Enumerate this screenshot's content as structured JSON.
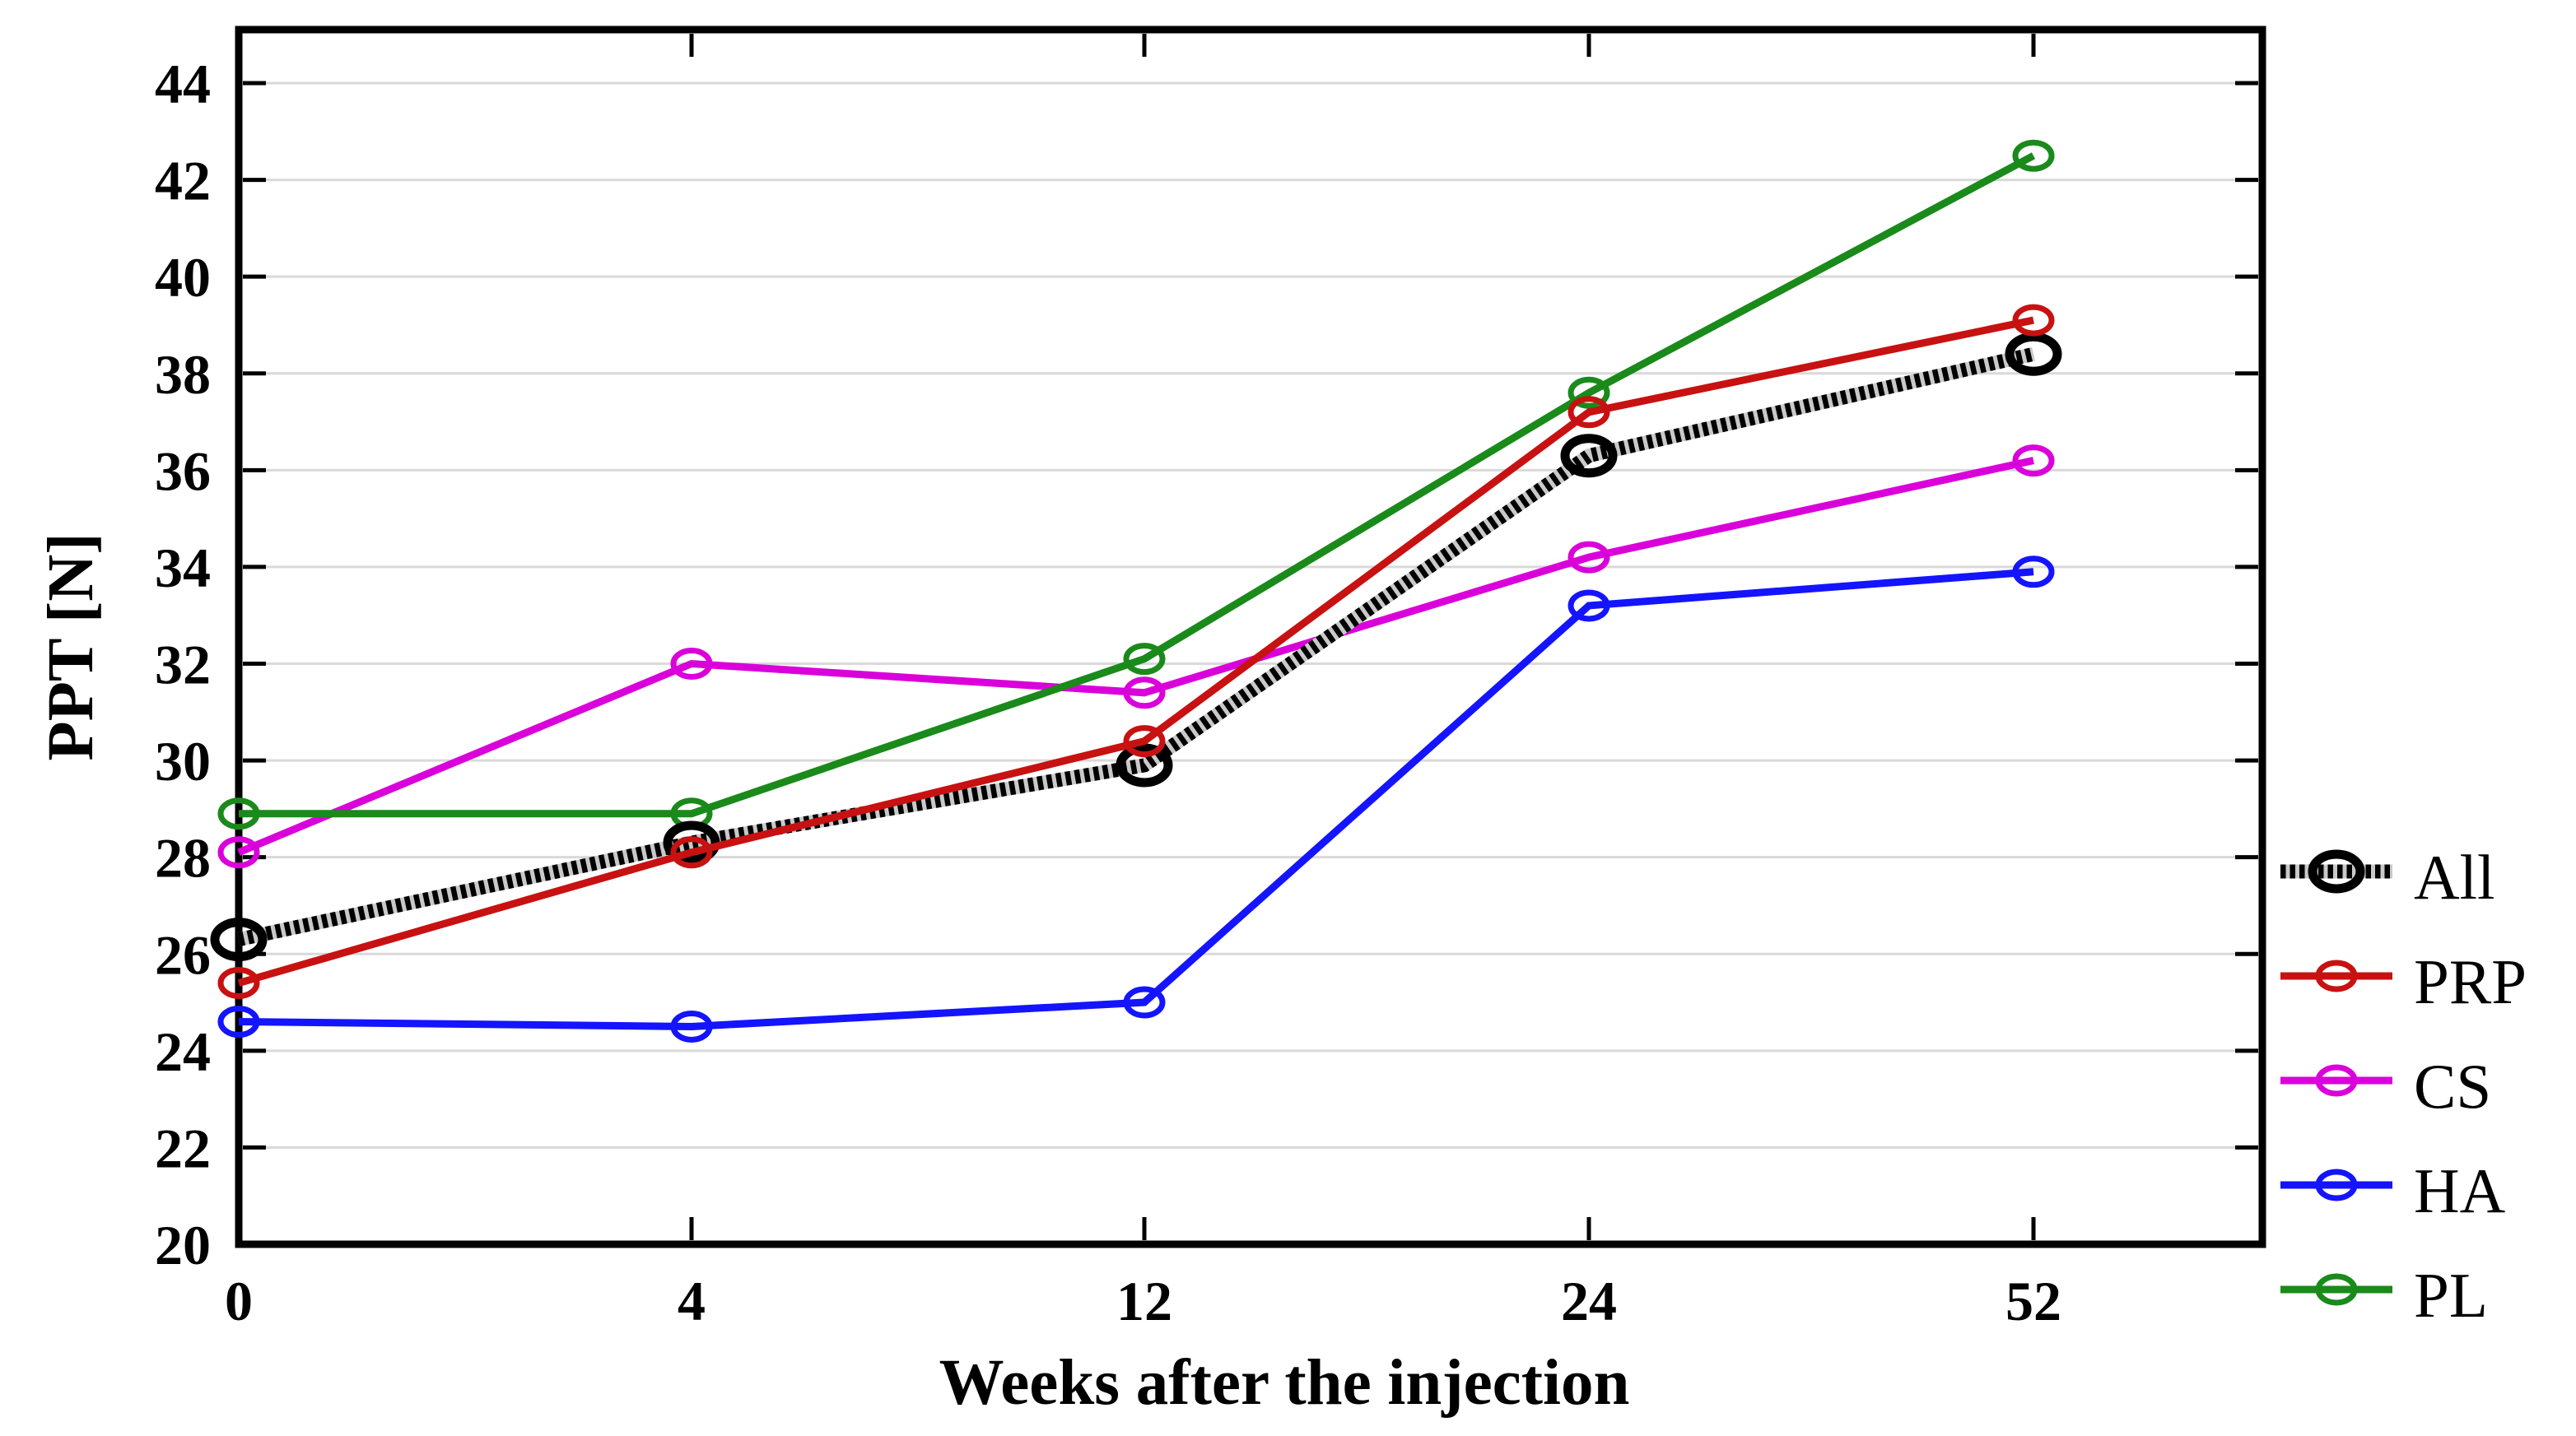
{
  "chart_data": {
    "type": "line",
    "title": "",
    "xlabel": "Weeks after the injection",
    "ylabel": "PPT [N]",
    "categories": [
      "0",
      "4",
      "12",
      "24",
      "52"
    ],
    "series": [
      {
        "name": "All",
        "color": "#000000",
        "line_style": "striped",
        "stripe_gap_color": "#c9c9c9",
        "values": [
          26.3,
          28.3,
          29.9,
          36.3,
          38.4
        ]
      },
      {
        "name": "PRP",
        "color": "#c81111",
        "line_style": "solid",
        "values": [
          25.4,
          28.1,
          30.4,
          37.2,
          39.1
        ]
      },
      {
        "name": "CS",
        "color": "#da00da",
        "line_style": "solid",
        "values": [
          28.1,
          32.0,
          31.4,
          34.2,
          36.2
        ]
      },
      {
        "name": "HA",
        "color": "#1414ff",
        "line_style": "solid",
        "values": [
          24.6,
          24.5,
          25.0,
          33.2,
          33.9
        ]
      },
      {
        "name": "PL",
        "color": "#1a8a1a",
        "line_style": "solid",
        "values": [
          28.9,
          28.9,
          32.1,
          37.6,
          42.5
        ]
      }
    ],
    "ylim": [
      20,
      44
    ],
    "yticks": [
      20,
      22,
      24,
      26,
      28,
      30,
      32,
      34,
      36,
      38,
      40,
      42,
      44
    ],
    "grid": "horizontal",
    "gridline_color": "#d9d9d9",
    "axis_color": "#000000",
    "background": "#ffffff",
    "legend_position": "right-bottom",
    "marker": "open-ellipse"
  }
}
